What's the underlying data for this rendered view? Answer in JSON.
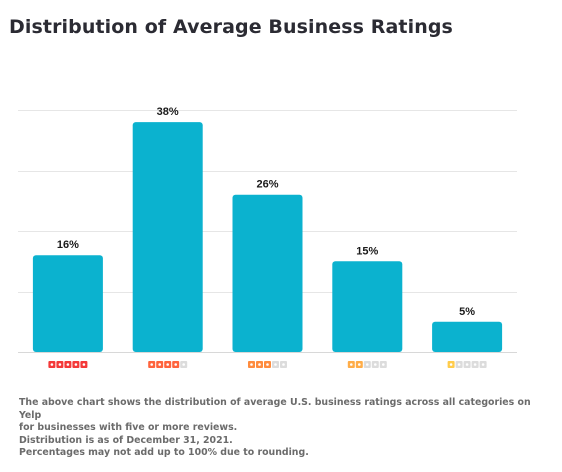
{
  "chart_data": {
    "type": "bar",
    "title": "Distribution of Average Business Ratings",
    "categories": [
      "5 stars",
      "4 stars",
      "3 stars",
      "2 stars",
      "1 star"
    ],
    "star_ratings": [
      5,
      4,
      3,
      2,
      1
    ],
    "values": [
      16,
      38,
      26,
      15,
      5
    ],
    "value_labels": [
      "16%",
      "38%",
      "26%",
      "15%",
      "5%"
    ],
    "unit": "%",
    "ylim": [
      0,
      40
    ],
    "ytick_gridlines": [
      0,
      10,
      20,
      30,
      40
    ],
    "grid": true,
    "legend": "none",
    "colors": {
      "bar": "#0bb2cf",
      "star_5": "#f43939",
      "star_4": "#ff643d",
      "star_3": "#ff8c3e",
      "star_2": "#ffad48",
      "star_1": "#ffcc4b",
      "star_empty": "#dcdcdc"
    }
  },
  "footnote": {
    "line1": "The above chart shows the distribution of average U.S. business ratings across all categories on Yelp",
    "line2": "for businesses with five or more reviews.",
    "line3": "Distribution is as of December 31, 2021.",
    "line4": "Percentages may not add up to 100% due to rounding."
  }
}
